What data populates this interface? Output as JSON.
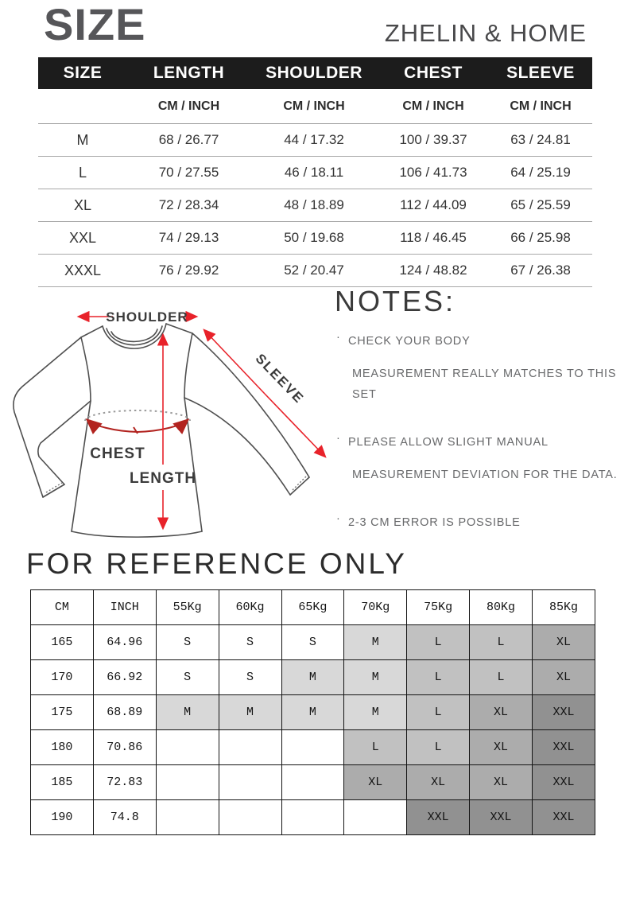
{
  "header": {
    "title": "SIZE",
    "brand": "ZHELIN & HOME"
  },
  "colors": {
    "header_bar": "#1c1c1c",
    "arrow_red": "#e8222a",
    "chest_arrow_red": "#b2231f",
    "outline_gray": "#4f4f4f",
    "title_gray": "#565659"
  },
  "size_table": {
    "columns": [
      "SIZE",
      "LENGTH",
      "SHOULDER",
      "CHEST",
      "SLEEVE"
    ],
    "unit_label": "CM / INCH",
    "rows": [
      {
        "size": "M",
        "length": "68 / 26.77",
        "shoulder": "44 / 17.32",
        "chest": "100 / 39.37",
        "sleeve": "63 / 24.81"
      },
      {
        "size": "L",
        "length": "70 / 27.55",
        "shoulder": "46 / 18.11",
        "chest": "106 / 41.73",
        "sleeve": "64 / 25.19"
      },
      {
        "size": "XL",
        "length": "72 / 28.34",
        "shoulder": "48 / 18.89",
        "chest": "112 / 44.09",
        "sleeve": "65 / 25.59"
      },
      {
        "size": "XXL",
        "length": "74 / 29.13",
        "shoulder": "50 / 19.68",
        "chest": "118 / 46.45",
        "sleeve": "66 / 25.98"
      },
      {
        "size": "XXXL",
        "length": "76 / 29.92",
        "shoulder": "52 / 20.47",
        "chest": "124 / 48.82",
        "sleeve": "67 / 26.38"
      }
    ]
  },
  "diagram": {
    "labels": {
      "shoulder": "SHOULDER",
      "sleeve": "SLEEVE",
      "chest": "CHEST",
      "length": "LENGTH"
    }
  },
  "notes": {
    "title": "NOTES:",
    "bullet": "·",
    "items": [
      [
        "CHECK YOUR BODY",
        "MEASUREMENT REALLY MATCHES TO THIS SET"
      ],
      [
        "PLEASE ALLOW SLIGHT MANUAL",
        "MEASUREMENT DEVIATION FOR THE DATA."
      ],
      [
        "2-3 CM ERROR IS POSSIBLE"
      ]
    ]
  },
  "reference": {
    "title": "FOR REFERENCE ONLY",
    "columns": [
      "CM",
      "INCH",
      "55Kg",
      "60Kg",
      "65Kg",
      "70Kg",
      "75Kg",
      "80Kg",
      "85Kg"
    ],
    "rows": [
      {
        "cm": "165",
        "inch": "64.96",
        "sizes": [
          "S",
          "S",
          "S",
          "M",
          "L",
          "L",
          "XL"
        ]
      },
      {
        "cm": "170",
        "inch": "66.92",
        "sizes": [
          "S",
          "S",
          "M",
          "M",
          "L",
          "L",
          "XL"
        ]
      },
      {
        "cm": "175",
        "inch": "68.89",
        "sizes": [
          "M",
          "M",
          "M",
          "M",
          "L",
          "XL",
          "XXL"
        ]
      },
      {
        "cm": "180",
        "inch": "70.86",
        "sizes": [
          "",
          "",
          "",
          "L",
          "L",
          "XL",
          "XXL"
        ]
      },
      {
        "cm": "185",
        "inch": "72.83",
        "sizes": [
          "",
          "",
          "",
          "XL",
          "XL",
          "XL",
          "XXL"
        ]
      },
      {
        "cm": "190",
        "inch": "74.8",
        "sizes": [
          "",
          "",
          "",
          "",
          "XXL",
          "XXL",
          "XXL"
        ]
      }
    ],
    "size_colors": {
      "S": "#ffffff",
      "M": "#d8d8d8",
      "L": "#c1c1c1",
      "XL": "#acacac",
      "XXL": "#919191"
    }
  }
}
